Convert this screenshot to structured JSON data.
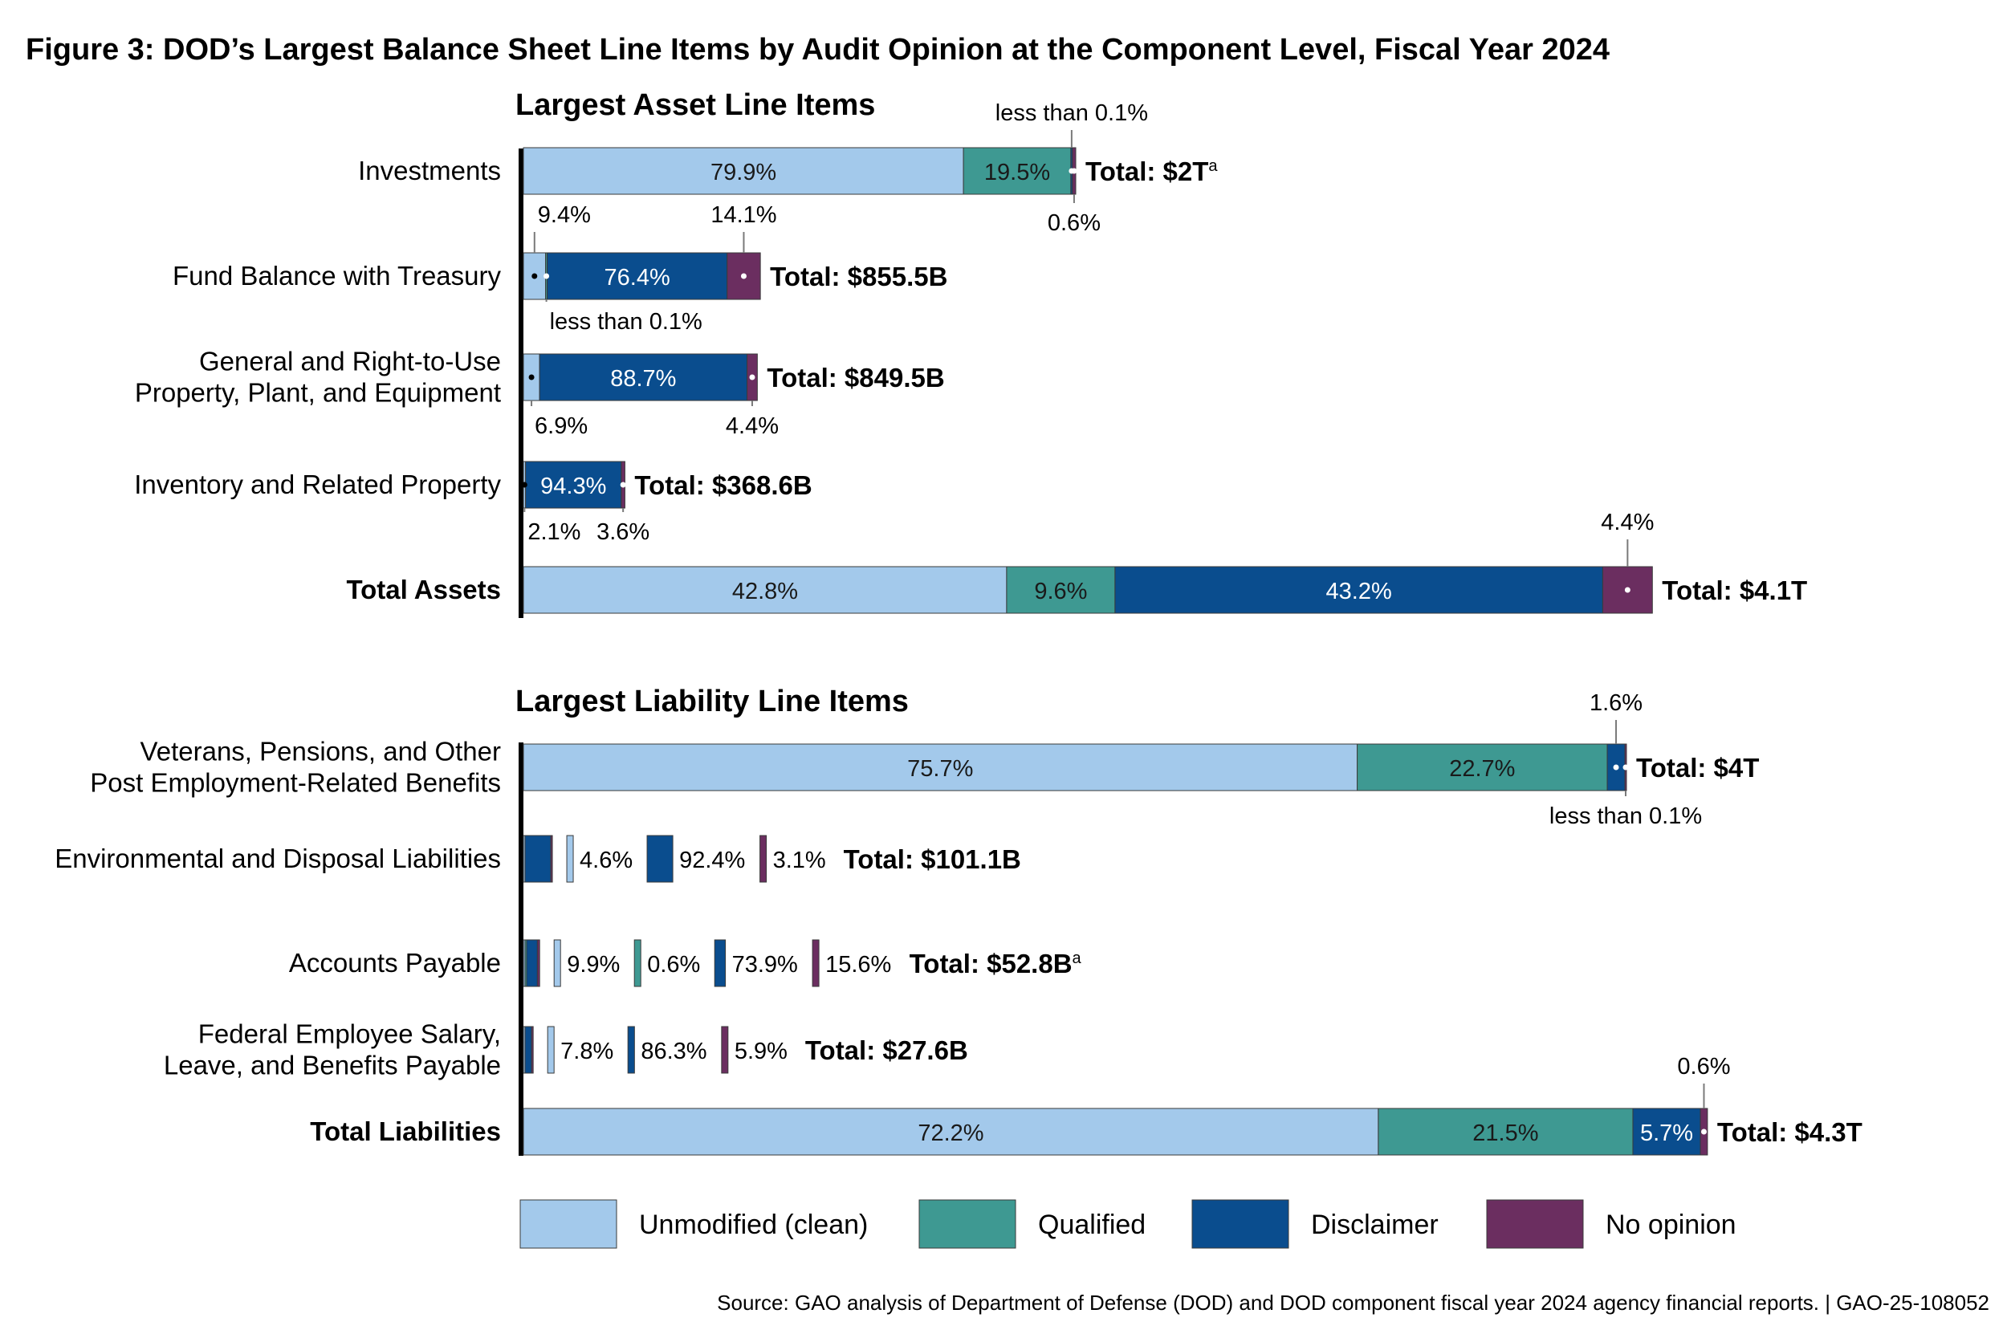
{
  "title": "Figure 3: DOD’s Largest Balance Sheet Line Items by Audit Opinion at the Component Level, Fiscal Year 2024",
  "source": "Source: GAO analysis of Department of Defense (DOD) and DOD component fiscal year 2024 agency financial reports.  |  GAO-25-108052",
  "colors": {
    "unmodified": "#a3c9eb",
    "qualified": "#3e9992",
    "disclaimer": "#0a4d8e",
    "no_opinion": "#6b2e60"
  },
  "legend": [
    {
      "key": "unmodified",
      "label": "Unmodified (clean)"
    },
    {
      "key": "qualified",
      "label": "Qualified"
    },
    {
      "key": "disclaimer",
      "label": "Disclaimer"
    },
    {
      "key": "no_opinion",
      "label": "No opinion"
    }
  ],
  "chart_data": [
    {
      "type": "bar",
      "stacked": true,
      "orientation": "horizontal",
      "title": "Largest Asset Line Items",
      "series_order": [
        "Unmodified (clean)",
        "Qualified",
        "Disclaimer",
        "No opinion"
      ],
      "rows": [
        {
          "category": "Investments",
          "total_amount_trillions": 2.0,
          "total_label": "Total: $2T",
          "footnote": "a",
          "values": [
            79.9,
            19.5,
            0.05,
            0.6
          ],
          "labels": [
            "79.9%",
            "19.5%",
            "less than 0.1%",
            "0.6%"
          ]
        },
        {
          "category": "Fund Balance with Treasury",
          "total_amount_trillions": 0.8555,
          "total_label": "Total: $855.5B",
          "values": [
            9.4,
            0.05,
            76.4,
            14.1
          ],
          "labels": [
            "9.4%",
            "less than 0.1%",
            "76.4%",
            "14.1%"
          ]
        },
        {
          "category": "General and Right-to-Use\nProperty, Plant, and Equipment",
          "total_amount_trillions": 0.8495,
          "total_label": "Total: $849.5B",
          "values": [
            6.9,
            0,
            88.7,
            4.4
          ],
          "labels": [
            "6.9%",
            "",
            "88.7%",
            "4.4%"
          ]
        },
        {
          "category": "Inventory and Related Property",
          "total_amount_trillions": 0.3686,
          "total_label": "Total: $368.6B",
          "values": [
            2.1,
            0,
            94.3,
            3.6
          ],
          "labels": [
            "2.1%",
            "",
            "94.3%",
            "3.6%"
          ]
        },
        {
          "category": "Total Assets",
          "is_total": true,
          "total_amount_trillions": 4.1,
          "total_label": "Total: $4.1T",
          "values": [
            42.8,
            9.6,
            43.2,
            4.4
          ],
          "labels": [
            "42.8%",
            "9.6%",
            "43.2%",
            "4.4%"
          ]
        }
      ]
    },
    {
      "type": "bar",
      "stacked": true,
      "orientation": "horizontal",
      "title": "Largest Liability Line Items",
      "series_order": [
        "Unmodified (clean)",
        "Qualified",
        "Disclaimer",
        "No opinion"
      ],
      "rows": [
        {
          "category": "Veterans, Pensions, and Other\nPost Employment-Related Benefits",
          "total_amount_trillions": 4.0,
          "total_label": "Total: $4T",
          "values": [
            75.7,
            22.7,
            1.6,
            0.05
          ],
          "labels": [
            "75.7%",
            "22.7%",
            "1.6%",
            "less than 0.1%"
          ]
        },
        {
          "category": "Environmental and Disposal Liabilities",
          "total_amount_trillions": 0.1011,
          "total_label": "Total: $101.1B",
          "values": [
            4.6,
            0,
            92.4,
            3.1
          ],
          "labels": [
            "4.6%",
            "",
            "92.4%",
            "3.1%"
          ]
        },
        {
          "category": "Accounts Payable",
          "total_amount_trillions": 0.0528,
          "total_label": "Total: $52.8B",
          "footnote": "a",
          "values": [
            9.9,
            0.6,
            73.9,
            15.6
          ],
          "labels": [
            "9.9%",
            "0.6%",
            "73.9%",
            "15.6%"
          ]
        },
        {
          "category": "Federal Employee Salary,\nLeave, and Benefits Payable",
          "total_amount_trillions": 0.0276,
          "total_label": "Total: $27.6B",
          "values": [
            7.8,
            0,
            86.3,
            5.9
          ],
          "labels": [
            "7.8%",
            "",
            "86.3%",
            "5.9%"
          ]
        },
        {
          "category": "Total Liabilities",
          "is_total": true,
          "total_amount_trillions": 4.3,
          "total_label": "Total: $4.3T",
          "values": [
            72.2,
            21.5,
            5.7,
            0.6
          ],
          "labels": [
            "72.2%",
            "21.5%",
            "5.7%",
            "0.6%"
          ]
        }
      ]
    }
  ]
}
